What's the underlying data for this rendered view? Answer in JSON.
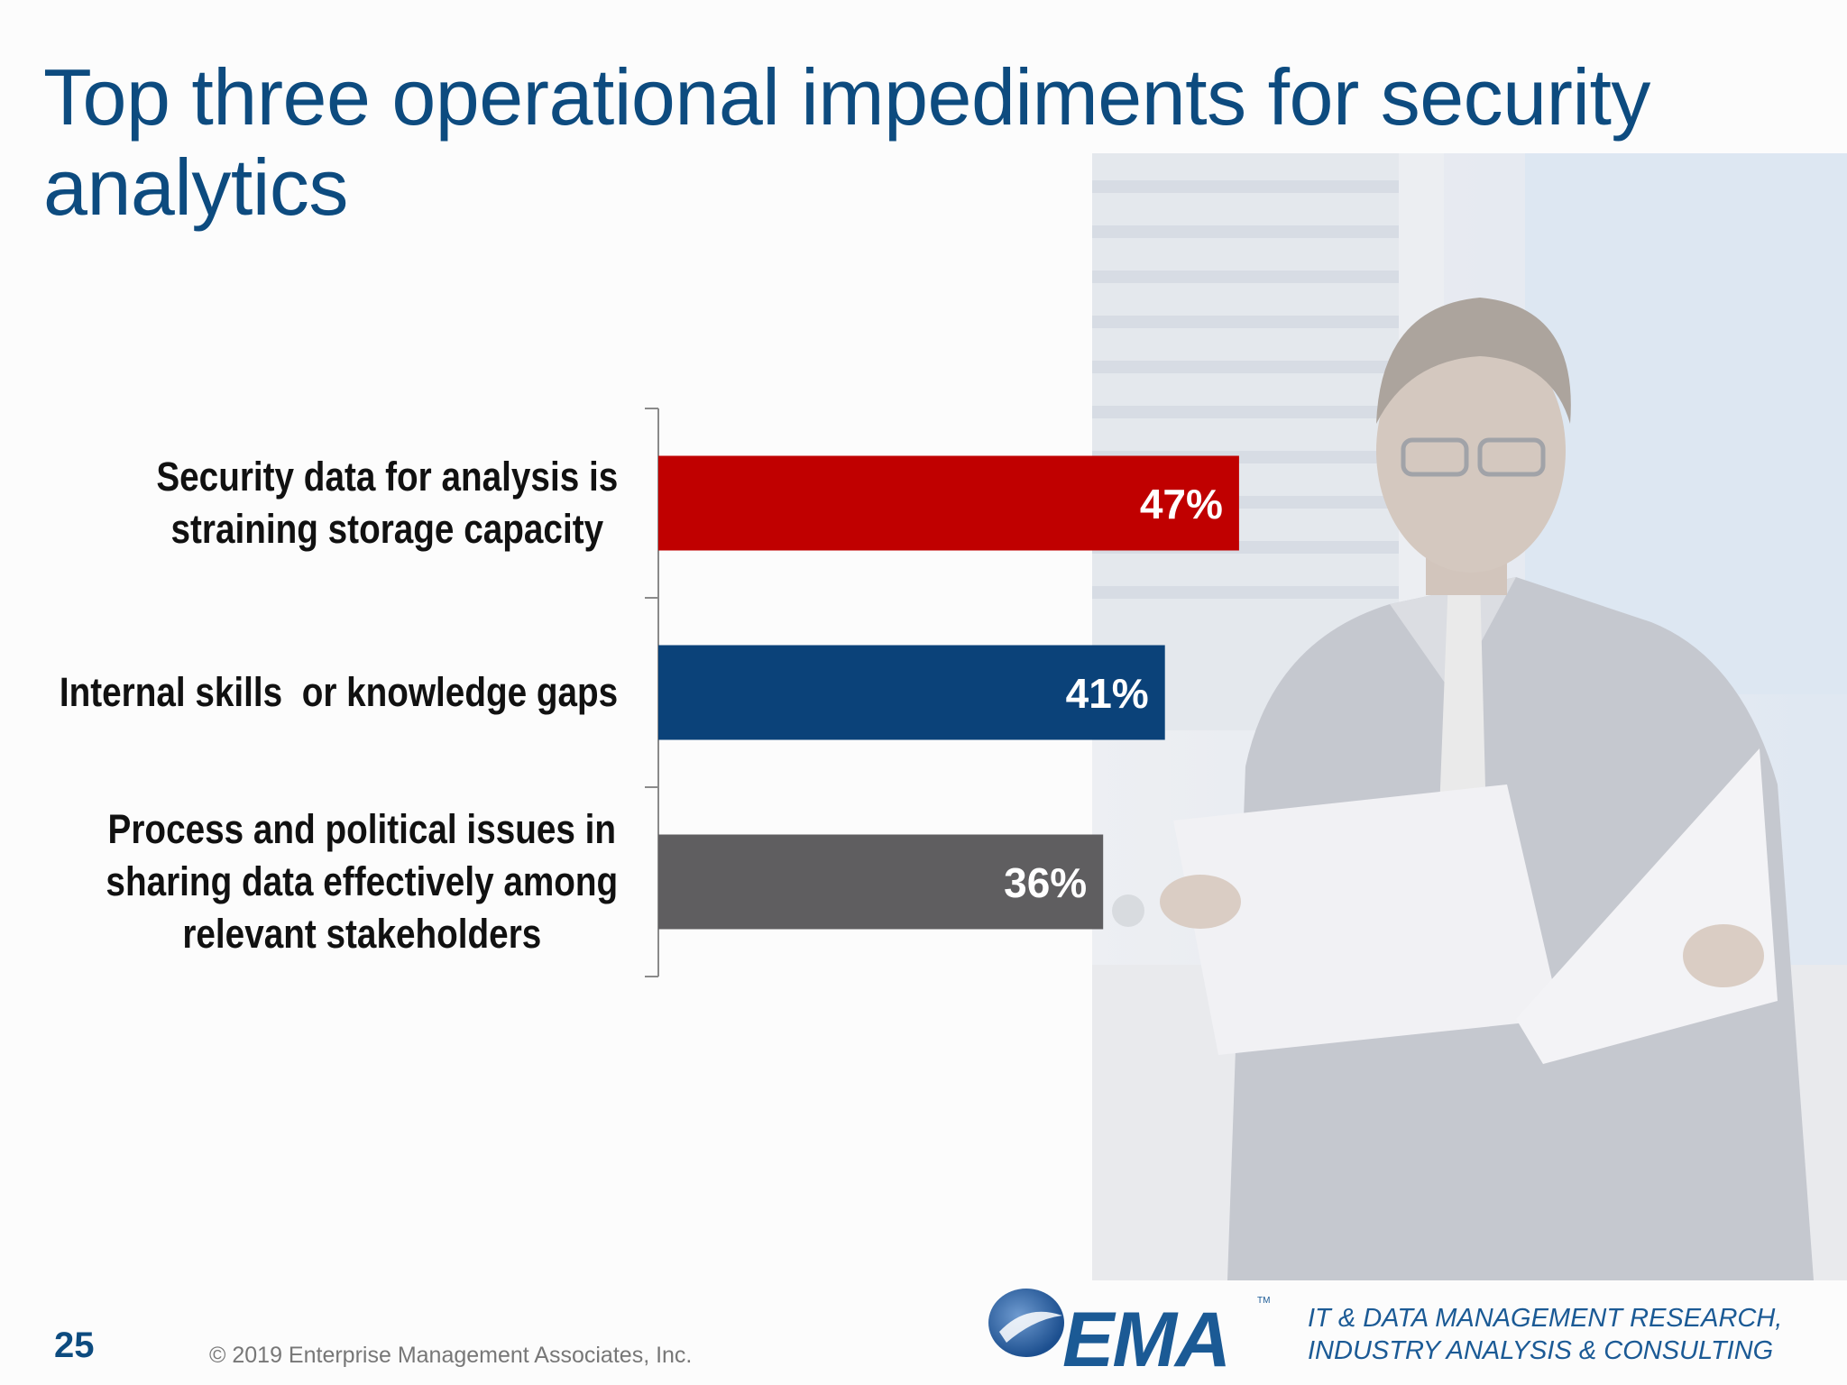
{
  "slide": {
    "title": "Top three operational impediments for security analytics",
    "page_number": "25",
    "copyright": "© 2019 Enterprise Management Associates, Inc.",
    "logo_text": "EMA",
    "logo_tm": "TM",
    "tagline_line1": "IT & DATA MANAGEMENT RESEARCH,",
    "tagline_line2": "INDUSTRY ANALYSIS & CONSULTING"
  },
  "chart_data": {
    "type": "bar",
    "orientation": "horizontal",
    "categories": [
      "Security data for analysis is straining storage capacity",
      "Internal skills  or knowledge gaps",
      "Process and political issues in sharing data effectively among relevant stakeholders"
    ],
    "category_lines": [
      [
        "Security data for analysis is",
        "straining storage capacity"
      ],
      [
        "Internal skills  or knowledge gaps"
      ],
      [
        "Process and political issues in",
        "sharing data effectively among",
        "relevant stakeholders"
      ]
    ],
    "values": [
      47,
      41,
      36
    ],
    "data_labels": [
      "47%",
      "41%",
      "36%"
    ],
    "colors": [
      "#c00000",
      "#0b4279",
      "#5f5e60"
    ],
    "xlim": [
      0,
      100
    ],
    "xaxis_visible": false,
    "grid": false,
    "legend": "none"
  },
  "theme": {
    "title_color": "#0d4b7f",
    "label_color": "#111111",
    "value_label_color": "#ffffff",
    "axis_color": "#8a8a8a",
    "brand_blue": "#1b5a95"
  }
}
